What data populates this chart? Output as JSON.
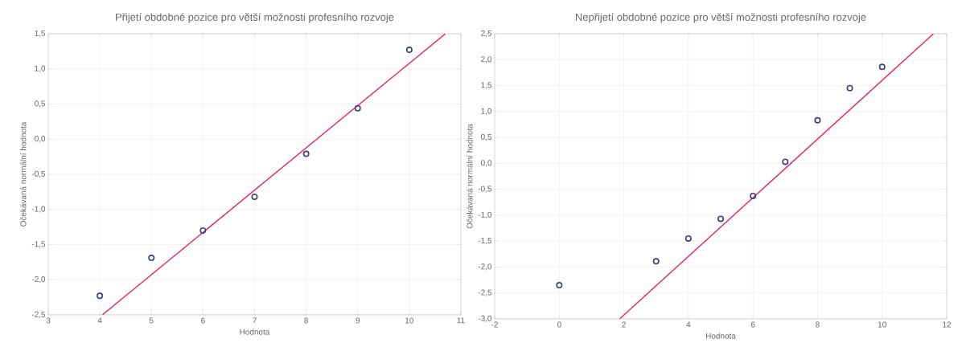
{
  "chart_data": [
    {
      "type": "scatter",
      "title": "Přijetí obdobné pozice pro větší možnosti profesního rozvoje",
      "xlabel": "Hodnota",
      "ylabel": "Očekávaná normální hodnota",
      "grid": true,
      "xlim": [
        3,
        11
      ],
      "ylim": [
        -2.5,
        1.5
      ],
      "xticks": [
        3,
        4,
        5,
        6,
        7,
        8,
        9,
        10,
        11
      ],
      "yticks": [
        {
          "value": -2.5,
          "label": "-2,5"
        },
        {
          "value": -2.0,
          "label": "-2,0"
        },
        {
          "value": -1.5,
          "label": "-1,5"
        },
        {
          "value": -1.0,
          "label": "-1,0"
        },
        {
          "value": -0.5,
          "label": "-0,5"
        },
        {
          "value": 0.0,
          "label": "0,0"
        },
        {
          "value": 0.5,
          "label": "0,5"
        },
        {
          "value": 1.0,
          "label": "1,0"
        },
        {
          "value": 1.5,
          "label": "1,5"
        }
      ],
      "series": [
        {
          "marker": "circle",
          "color": "#3b3f7c",
          "x": [
            4,
            5,
            6,
            7,
            8,
            9,
            10
          ],
          "values": [
            -2.23,
            -1.69,
            -1.3,
            -0.82,
            -0.21,
            0.44,
            1.27
          ]
        },
        {
          "type": "line",
          "color": "#e8206a",
          "x": [
            4.05,
            10.7
          ],
          "values": [
            -2.5,
            1.5
          ]
        }
      ]
    },
    {
      "type": "scatter",
      "title": "Nepřijetí obdobné pozice pro větší možnosti profesního rozvoje",
      "xlabel": "Hodnota",
      "ylabel": "Očekávaná normální hodnota",
      "grid": true,
      "xlim": [
        -2,
        12
      ],
      "ylim": [
        -3.0,
        2.5
      ],
      "xticks": [
        -2,
        0,
        2,
        4,
        6,
        8,
        10,
        12
      ],
      "yticks": [
        {
          "value": -3.0,
          "label": "-3,0"
        },
        {
          "value": -2.5,
          "label": "-2,5"
        },
        {
          "value": -2.0,
          "label": "-2,0"
        },
        {
          "value": -1.5,
          "label": "-1,5"
        },
        {
          "value": -1.0,
          "label": "-1,0"
        },
        {
          "value": -0.5,
          "label": "-0,5"
        },
        {
          "value": 0.0,
          "label": "0,0"
        },
        {
          "value": 0.5,
          "label": "0,5"
        },
        {
          "value": 1.0,
          "label": "1,0"
        },
        {
          "value": 1.5,
          "label": "1,5"
        },
        {
          "value": 2.0,
          "label": "2,0"
        },
        {
          "value": 2.5,
          "label": "2,5"
        }
      ],
      "series": [
        {
          "marker": "circle",
          "color": "#3b3f7c",
          "x": [
            0,
            3,
            4,
            5,
            6,
            7,
            8,
            9,
            10
          ],
          "values": [
            -2.35,
            -1.89,
            -1.45,
            -1.07,
            -0.63,
            0.03,
            0.83,
            1.45,
            1.86
          ]
        },
        {
          "type": "line",
          "color": "#e8206a",
          "x": [
            1.87,
            11.59
          ],
          "values": [
            -3.0,
            2.5
          ]
        }
      ]
    }
  ]
}
